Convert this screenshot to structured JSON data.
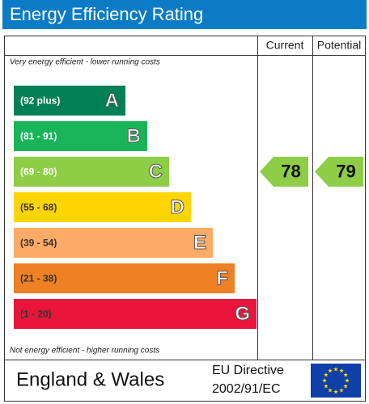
{
  "header": {
    "title": "Energy Efficiency Rating"
  },
  "columns": [
    "Current",
    "Potential"
  ],
  "top_note": "Very energy efficient - lower running costs",
  "bottom_note": "Not energy efficient - higher running costs",
  "bands": [
    {
      "range": "(92 plus)",
      "letter": "A",
      "color": "#008054",
      "text_color": "#ffffff"
    },
    {
      "range": "(81 - 91)",
      "letter": "B",
      "color": "#19b459",
      "text_color": "#ffffff"
    },
    {
      "range": "(69 - 80)",
      "letter": "C",
      "color": "#8dce46",
      "text_color": "#ffffff"
    },
    {
      "range": "(55 - 68)",
      "letter": "D",
      "color": "#ffd500",
      "text_color": "#333333"
    },
    {
      "range": "(39 - 54)",
      "letter": "E",
      "color": "#fcaa65",
      "text_color": "#333333"
    },
    {
      "range": "(21 - 38)",
      "letter": "F",
      "color": "#ef8023",
      "text_color": "#333333"
    },
    {
      "range": "(1 - 20)",
      "letter": "G",
      "color": "#e9153b",
      "text_color": "#333333"
    }
  ],
  "current": {
    "value": 78
  },
  "potential": {
    "value": 79
  },
  "footer": {
    "region": "England & Wales",
    "directive_line1": "EU Directive",
    "directive_line2": "2002/91/EC"
  }
}
